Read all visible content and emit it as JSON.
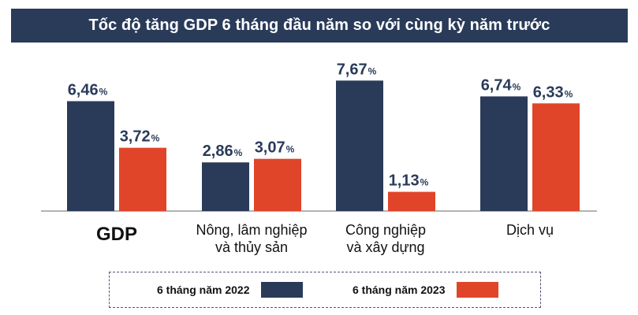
{
  "chart_data": {
    "type": "bar",
    "title": "Tốc độ tăng GDP 6 tháng đầu năm so với cùng kỳ năm trước",
    "categories": [
      [
        "GDP"
      ],
      [
        "Nông, lâm nghiệp",
        "và thủy sản"
      ],
      [
        "Công nghiệp",
        "và xây dựng"
      ],
      [
        "Dịch vụ"
      ]
    ],
    "series": [
      {
        "name": "6 tháng năm 2022",
        "color": "#2a3b5a",
        "values": [
          6.46,
          2.86,
          7.67,
          6.74
        ],
        "labels": [
          "6,46",
          "2,86",
          "7,67",
          "6,74"
        ]
      },
      {
        "name": "6 tháng năm 2023",
        "color": "#e0452a",
        "values": [
          3.72,
          3.07,
          1.13,
          6.33
        ],
        "labels": [
          "3,72",
          "3,07",
          "1,13",
          "6,33"
        ]
      }
    ],
    "unit": "%",
    "ylim": [
      0,
      8
    ],
    "grid": false,
    "legend": "bottom"
  }
}
